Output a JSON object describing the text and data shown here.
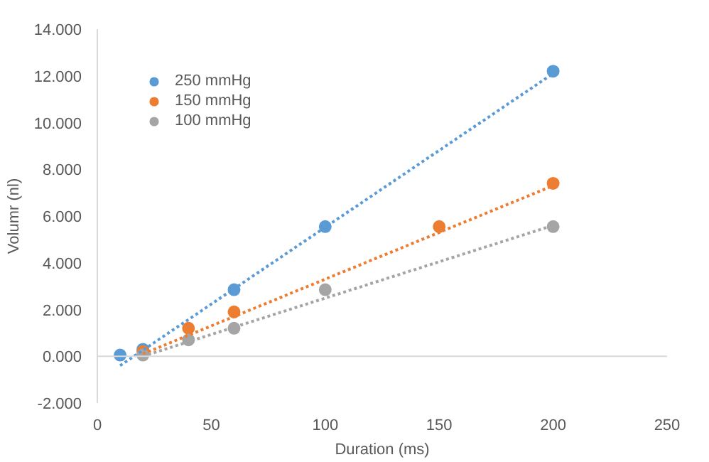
{
  "chart_data": {
    "type": "scatter",
    "xlabel": "Duration (ms)",
    "ylabel": "Volumr (nl)",
    "series": [
      {
        "name": "250 mmHg",
        "color": "#5b9bd5",
        "x": [
          10,
          20,
          60,
          100,
          200
        ],
        "values": [
          0.05,
          0.3,
          2.85,
          5.55,
          12.2
        ]
      },
      {
        "name": "150 mmHg",
        "color": "#ed7d31",
        "x": [
          20,
          40,
          60,
          150,
          200
        ],
        "values": [
          0.2,
          1.2,
          1.9,
          5.55,
          7.4
        ]
      },
      {
        "name": "100 mmHg",
        "color": "#a5a5a5",
        "x": [
          20,
          40,
          60,
          100,
          200
        ],
        "values": [
          0.05,
          0.7,
          1.2,
          2.85,
          5.55
        ]
      },
      {
        "type": "line",
        "color": "#5b9bd5",
        "line_style": "dotted",
        "marker": "none",
        "x": [
          10,
          200
        ],
        "values": [
          -0.4,
          12.1
        ]
      },
      {
        "type": "line",
        "color": "#ed7d31",
        "line_style": "dotted",
        "marker": "none",
        "x": [
          20,
          200
        ],
        "values": [
          0.1,
          7.3
        ]
      },
      {
        "type": "line",
        "color": "#a5a5a5",
        "line_style": "dotted",
        "marker": "none",
        "x": [
          20,
          200
        ],
        "values": [
          0.0,
          5.6
        ]
      }
    ],
    "marker": "circle",
    "legend": "top left",
    "grid": false,
    "ref_lines": [
      {
        "axis": "y",
        "value": 0,
        "color": "#d9d9d9"
      }
    ],
    "xlim": [
      0,
      250
    ],
    "xticks": [
      0,
      50,
      100,
      150,
      200,
      250
    ],
    "ylim": [
      -2,
      14
    ],
    "yticks": [
      {
        "value": -2,
        "label": "-2.000"
      },
      {
        "value": 0,
        "label": "0.000"
      },
      {
        "value": 2,
        "label": "2.000"
      },
      {
        "value": 4,
        "label": "4.000"
      },
      {
        "value": 6,
        "label": "6.000"
      },
      {
        "value": 8,
        "label": "8.000"
      },
      {
        "value": 10,
        "label": "10.000"
      },
      {
        "value": 12,
        "label": "12.000"
      },
      {
        "value": 14,
        "label": "14.000"
      }
    ]
  }
}
